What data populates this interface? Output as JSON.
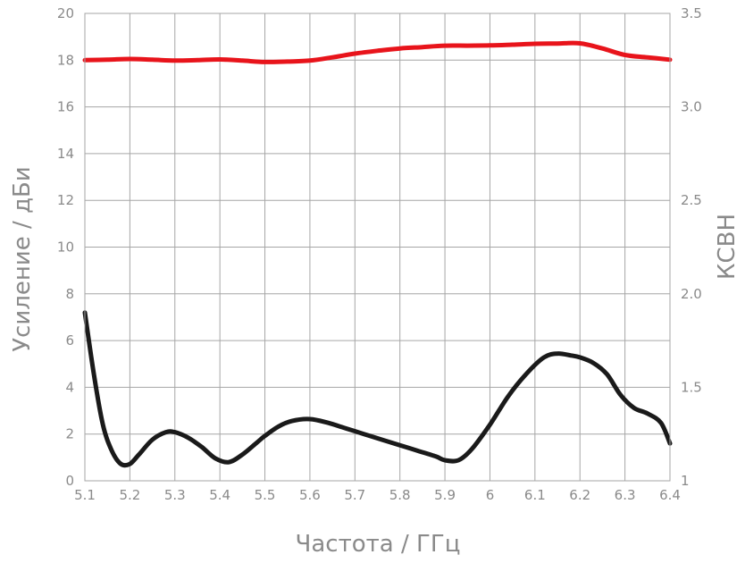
{
  "chart_data": {
    "type": "line",
    "xlabel": "Частота / ГГц",
    "ylabel_left": "Усиление / дБи",
    "ylabel_right": "КСВН",
    "x_ticks": [
      "5.1",
      "5.2",
      "5.3",
      "5.4",
      "5.5",
      "5.6",
      "5.7",
      "5.8",
      "5.9",
      "6",
      "6.1",
      "6.2",
      "6.3",
      "6.4"
    ],
    "y_left_ticks": [
      "0",
      "2",
      "4",
      "6",
      "8",
      "10",
      "12",
      "14",
      "16",
      "18",
      "20"
    ],
    "y_right_ticks": [
      "1",
      "1.5",
      "2.0",
      "2.5",
      "3.0",
      "3.5"
    ],
    "xlim": [
      5.1,
      6.4
    ],
    "ylim_left": [
      0,
      20
    ],
    "ylim_right": [
      1,
      3.5
    ],
    "grid": true,
    "series": [
      {
        "axis": "left",
        "color": "#e8141b",
        "x": [
          5.1,
          5.15,
          5.2,
          5.25,
          5.3,
          5.35,
          5.4,
          5.45,
          5.5,
          5.55,
          5.6,
          5.65,
          5.7,
          5.75,
          5.8,
          5.85,
          5.9,
          5.95,
          6.0,
          6.05,
          6.1,
          6.15,
          6.2,
          6.25,
          6.3,
          6.35,
          6.4
        ],
        "values": [
          18.0,
          18.02,
          18.05,
          18.02,
          17.98,
          18.0,
          18.03,
          17.98,
          17.92,
          17.94,
          17.98,
          18.12,
          18.28,
          18.4,
          18.5,
          18.56,
          18.62,
          18.62,
          18.63,
          18.66,
          18.7,
          18.71,
          18.72,
          18.5,
          18.22,
          18.12,
          18.02
        ]
      },
      {
        "axis": "right",
        "color": "#1a1a1a",
        "x": [
          5.1,
          5.12,
          5.14,
          5.16,
          5.18,
          5.2,
          5.22,
          5.25,
          5.28,
          5.3,
          5.33,
          5.36,
          5.39,
          5.42,
          5.45,
          5.48,
          5.5,
          5.53,
          5.56,
          5.6,
          5.64,
          5.68,
          5.72,
          5.76,
          5.8,
          5.84,
          5.88,
          5.9,
          5.93,
          5.96,
          6.0,
          6.04,
          6.08,
          6.12,
          6.15,
          6.18,
          6.2,
          6.23,
          6.26,
          6.29,
          6.32,
          6.35,
          6.38,
          6.4
        ],
        "values": [
          1.9,
          1.57,
          1.3,
          1.16,
          1.09,
          1.09,
          1.14,
          1.22,
          1.26,
          1.26,
          1.23,
          1.18,
          1.12,
          1.1,
          1.14,
          1.2,
          1.24,
          1.29,
          1.32,
          1.33,
          1.31,
          1.28,
          1.25,
          1.22,
          1.19,
          1.16,
          1.13,
          1.11,
          1.11,
          1.17,
          1.3,
          1.45,
          1.57,
          1.66,
          1.68,
          1.67,
          1.66,
          1.63,
          1.57,
          1.46,
          1.39,
          1.36,
          1.31,
          1.2
        ]
      }
    ]
  }
}
